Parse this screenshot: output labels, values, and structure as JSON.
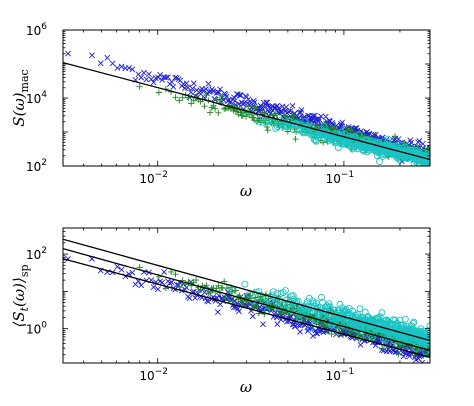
{
  "chart_data": [
    {
      "type": "scatter",
      "xlabel": "ω",
      "ylabel": "S(ω)_mac",
      "ylabel_main": "S(ω)",
      "ylabel_sub": "mac",
      "xscale": "log",
      "yscale": "log",
      "xlim": [
        0.0031,
        0.29
      ],
      "ylim": [
        100,
        1000000
      ],
      "x_ticks": [
        {
          "value": 0.01,
          "base": "10",
          "exp": "−2"
        },
        {
          "value": 0.1,
          "base": "10",
          "exp": "−1"
        }
      ],
      "y_ticks": [
        {
          "value": 100,
          "base": "10",
          "exp": "2"
        },
        {
          "value": 10000,
          "base": "10",
          "exp": "4"
        },
        {
          "value": 1000000,
          "base": "10",
          "exp": "6"
        }
      ],
      "grid": false,
      "series": [
        {
          "marker": "x",
          "color": "#1f1fd6",
          "x_range": [
            0.0033,
            0.29
          ],
          "y_start": 220000,
          "y_end": 210,
          "scatter": 0.12
        },
        {
          "marker": "+",
          "color": "#1a8a1a",
          "x_range": [
            0.008,
            0.29
          ],
          "y_start": 21000,
          "y_end": 170,
          "scatter": 0.12
        },
        {
          "marker": "o",
          "color": "#19c4c4",
          "x_range": [
            0.03,
            0.29
          ],
          "y_start": 3000,
          "y_end": 150,
          "scatter": 0.1
        }
      ],
      "fit_lines": [
        {
          "x": [
            0.0031,
            0.29
          ],
          "y": [
            110000,
            155
          ],
          "color": "#000000"
        }
      ]
    },
    {
      "type": "scatter",
      "xlabel": "ω",
      "ylabel": "⟨S_t(ω)⟩_sp",
      "ylabel_main": "⟨S",
      "ylabel_t": "t",
      "ylabel_rest": "(ω)⟩",
      "ylabel_sub": "sp",
      "xscale": "log",
      "yscale": "log",
      "xlim": [
        0.0031,
        0.29
      ],
      "ylim": [
        0.12,
        500
      ],
      "x_ticks": [
        {
          "value": 0.01,
          "base": "10",
          "exp": "−2"
        },
        {
          "value": 0.1,
          "base": "10",
          "exp": "−1"
        }
      ],
      "y_ticks": [
        {
          "value": 1,
          "base": "10",
          "exp": "0"
        },
        {
          "value": 100,
          "base": "10",
          "exp": "2"
        }
      ],
      "grid": false,
      "series": [
        {
          "marker": "x",
          "color": "#1f1fd6",
          "x_range": [
            0.0033,
            0.29
          ],
          "y_start": 80,
          "y_end": 0.22,
          "scatter": 0.14
        },
        {
          "marker": "+",
          "color": "#1a8a1a",
          "x_range": [
            0.008,
            0.29
          ],
          "y_start": 35,
          "y_end": 0.35,
          "scatter": 0.14
        },
        {
          "marker": "o",
          "color": "#19c4c4",
          "x_range": [
            0.025,
            0.29
          ],
          "y_start": 13,
          "y_end": 0.5,
          "scatter": 0.14
        }
      ],
      "fit_lines": [
        {
          "x": [
            0.0031,
            0.29
          ],
          "y": [
            250,
            0.48
          ],
          "color": "#000000"
        },
        {
          "x": [
            0.0031,
            0.29
          ],
          "y": [
            140,
            0.26
          ],
          "color": "#000000"
        },
        {
          "x": [
            0.0031,
            0.29
          ],
          "y": [
            75,
            0.17
          ],
          "color": "#000000"
        }
      ]
    }
  ]
}
